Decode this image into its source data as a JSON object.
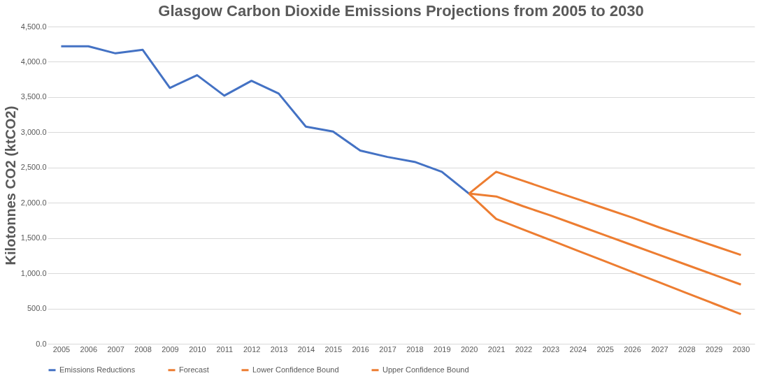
{
  "chart_data": {
    "type": "line",
    "title": "Glasgow Carbon Dioxide Emissions Projections from 2005 to 2030",
    "ylabel": "Kilotonnes CO2 (ktCO2)",
    "categories": [
      "2005",
      "2006",
      "2007",
      "2008",
      "2009",
      "2010",
      "2011",
      "2012",
      "2013",
      "2014",
      "2015",
      "2016",
      "2017",
      "2018",
      "2019",
      "2020",
      "2021",
      "2022",
      "2023",
      "2024",
      "2025",
      "2026",
      "2027",
      "2028",
      "2029",
      "2030"
    ],
    "series": [
      {
        "name": "Emissions Reductions",
        "color": "#4472c4",
        "values": [
          4220,
          4220,
          4120,
          4170,
          3630,
          3810,
          3520,
          3730,
          3550,
          3080,
          3010,
          2740,
          2650,
          2580,
          2440,
          2130,
          null,
          null,
          null,
          null,
          null,
          null,
          null,
          null,
          null,
          null
        ]
      },
      {
        "name": "Forecast",
        "color": "#ed7d31",
        "values": [
          null,
          null,
          null,
          null,
          null,
          null,
          null,
          null,
          null,
          null,
          null,
          null,
          null,
          null,
          null,
          2130,
          2090,
          1950,
          1820,
          1680,
          1540,
          1400,
          1260,
          1120,
          980,
          840
        ]
      },
      {
        "name": "Lower Confidence Bound",
        "color": "#ed7d31",
        "values": [
          null,
          null,
          null,
          null,
          null,
          null,
          null,
          null,
          null,
          null,
          null,
          null,
          null,
          null,
          null,
          2130,
          1770,
          1620,
          1470,
          1320,
          1170,
          1020,
          870,
          720,
          570,
          420
        ]
      },
      {
        "name": "Upper Confidence Bound",
        "color": "#ed7d31",
        "values": [
          null,
          null,
          null,
          null,
          null,
          null,
          null,
          null,
          null,
          null,
          null,
          null,
          null,
          null,
          null,
          2130,
          2440,
          2310,
          2180,
          2050,
          1920,
          1790,
          1650,
          1520,
          1390,
          1260
        ]
      }
    ],
    "ylim": [
      0,
      4500
    ],
    "yticks": [
      {
        "value": 0,
        "label": "0.0"
      },
      {
        "value": 500,
        "label": "500.0"
      },
      {
        "value": 1000,
        "label": "1,000.0"
      },
      {
        "value": 1500,
        "label": "1,500.0"
      },
      {
        "value": 2000,
        "label": "2,000.0"
      },
      {
        "value": 2500,
        "label": "2,500.0"
      },
      {
        "value": 3000,
        "label": "3,000.0"
      },
      {
        "value": 3500,
        "label": "3,500.0"
      },
      {
        "value": 4000,
        "label": "4,000.0"
      },
      {
        "value": 4500,
        "label": "4,500.0"
      }
    ],
    "grid": "y",
    "legend": "bottom",
    "marker": "none"
  }
}
